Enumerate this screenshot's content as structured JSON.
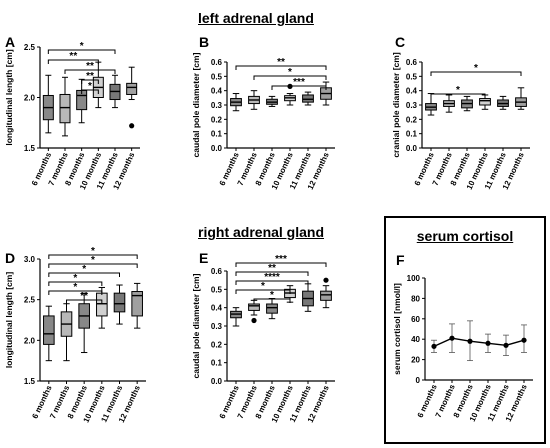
{
  "sections": {
    "left": "left adrenal gland",
    "right": "right adrenal gland",
    "cortisol": "serum cortisol"
  },
  "chart_data": [
    {
      "id": "A",
      "type": "boxplot",
      "ylabel": "longitudinal length [cm]",
      "ylim": [
        1.5,
        2.5
      ],
      "yticks": [
        "1.5",
        "2.0",
        "2.5"
      ],
      "categories": [
        "6 months",
        "7 months",
        "8 months",
        "10 months",
        "11 months",
        "12 months"
      ],
      "boxes": [
        {
          "min": 1.65,
          "q1": 1.78,
          "median": 1.9,
          "q3": 2.02,
          "max": 2.22,
          "fill": "#888888"
        },
        {
          "min": 1.62,
          "q1": 1.75,
          "median": 1.9,
          "q3": 2.03,
          "max": 2.2,
          "fill": "#b8b8b8"
        },
        {
          "min": 1.75,
          "q1": 1.88,
          "median": 2.02,
          "q3": 2.07,
          "max": 2.18,
          "fill": "#888888"
        },
        {
          "min": 1.9,
          "q1": 2.0,
          "median": 2.1,
          "q3": 2.2,
          "max": 2.35,
          "fill": "#d0d0d0"
        },
        {
          "min": 1.9,
          "q1": 1.98,
          "median": 2.06,
          "q3": 2.13,
          "max": 2.22,
          "fill": "#777777"
        },
        {
          "min": 1.98,
          "q1": 2.03,
          "median": 2.1,
          "q3": 2.14,
          "max": 2.3,
          "fill": "#a0a0a0"
        }
      ],
      "outliers": [
        {
          "cat": 5,
          "value": 1.72
        }
      ],
      "brackets": [
        {
          "from": 0,
          "to": 4,
          "label": "*"
        },
        {
          "from": 0,
          "to": 3,
          "label": "**"
        },
        {
          "from": 1,
          "to": 4,
          "label": "**"
        },
        {
          "from": 2,
          "to": 3,
          "label": "**"
        },
        {
          "from": 2,
          "to": 3,
          "label": "*"
        }
      ]
    },
    {
      "id": "B",
      "type": "boxplot",
      "ylabel": "caudal pole diameter [cm]",
      "ylim": [
        0.0,
        0.6
      ],
      "yticks": [
        "0.0",
        "0.1",
        "0.2",
        "0.3",
        "0.4",
        "0.5",
        "0.6"
      ],
      "categories": [
        "6 months",
        "7 months",
        "8 months",
        "10 months",
        "11 months",
        "12 months"
      ],
      "boxes": [
        {
          "min": 0.26,
          "q1": 0.295,
          "median": 0.32,
          "q3": 0.345,
          "max": 0.38,
          "fill": "#888888"
        },
        {
          "min": 0.27,
          "q1": 0.31,
          "median": 0.335,
          "q3": 0.36,
          "max": 0.4,
          "fill": "#b8b8b8"
        },
        {
          "min": 0.29,
          "q1": 0.305,
          "median": 0.32,
          "q3": 0.34,
          "max": 0.36,
          "fill": "#888888"
        },
        {
          "min": 0.3,
          "q1": 0.33,
          "median": 0.35,
          "q3": 0.365,
          "max": 0.38,
          "fill": "#d0d0d0"
        },
        {
          "min": 0.3,
          "q1": 0.32,
          "median": 0.34,
          "q3": 0.37,
          "max": 0.39,
          "fill": "#777777"
        },
        {
          "min": 0.3,
          "q1": 0.34,
          "median": 0.38,
          "q3": 0.42,
          "max": 0.46,
          "fill": "#a0a0a0"
        }
      ],
      "outliers": [
        {
          "cat": 3,
          "value": 0.43
        }
      ],
      "brackets": [
        {
          "from": 0,
          "to": 5,
          "label": "**"
        },
        {
          "from": 1,
          "to": 5,
          "label": "*"
        },
        {
          "from": 2,
          "to": 5,
          "label": "***"
        }
      ]
    },
    {
      "id": "C",
      "type": "boxplot",
      "ylabel": "cranial pole diameter [cm]",
      "ylim": [
        0.0,
        0.6
      ],
      "yticks": [
        "0.0",
        "0.1",
        "0.2",
        "0.3",
        "0.4",
        "0.5",
        "0.6"
      ],
      "categories": [
        "6 months",
        "7 months",
        "8 months",
        "10 months",
        "11 months",
        "12 months"
      ],
      "boxes": [
        {
          "min": 0.23,
          "q1": 0.265,
          "median": 0.285,
          "q3": 0.31,
          "max": 0.38,
          "fill": "#888888"
        },
        {
          "min": 0.25,
          "q1": 0.29,
          "median": 0.31,
          "q3": 0.33,
          "max": 0.37,
          "fill": "#b8b8b8"
        },
        {
          "min": 0.26,
          "q1": 0.28,
          "median": 0.31,
          "q3": 0.335,
          "max": 0.36,
          "fill": "#888888"
        },
        {
          "min": 0.27,
          "q1": 0.3,
          "median": 0.33,
          "q3": 0.345,
          "max": 0.37,
          "fill": "#d0d0d0"
        },
        {
          "min": 0.27,
          "q1": 0.29,
          "median": 0.31,
          "q3": 0.335,
          "max": 0.36,
          "fill": "#777777"
        },
        {
          "min": 0.27,
          "q1": 0.29,
          "median": 0.32,
          "q3": 0.35,
          "max": 0.42,
          "fill": "#a0a0a0"
        }
      ],
      "outliers": [],
      "brackets": [
        {
          "from": 0,
          "to": 5,
          "label": "*"
        },
        {
          "from": 0,
          "to": 3,
          "label": "*"
        }
      ]
    },
    {
      "id": "D",
      "type": "boxplot",
      "ylabel": "longitudinal length [cm]",
      "ylim": [
        1.5,
        3.0
      ],
      "yticks": [
        "1.5",
        "2.0",
        "2.5",
        "3.0"
      ],
      "categories": [
        "6 months",
        "7 months",
        "8 months",
        "10 months",
        "11 months",
        "12 months"
      ],
      "boxes": [
        {
          "min": 1.75,
          "q1": 1.95,
          "median": 2.08,
          "q3": 2.3,
          "max": 2.42,
          "fill": "#888888"
        },
        {
          "min": 1.75,
          "q1": 2.05,
          "median": 2.2,
          "q3": 2.35,
          "max": 2.45,
          "fill": "#b8b8b8"
        },
        {
          "min": 1.85,
          "q1": 2.15,
          "median": 2.3,
          "q3": 2.45,
          "max": 2.58,
          "fill": "#888888"
        },
        {
          "min": 2.15,
          "q1": 2.3,
          "median": 2.45,
          "q3": 2.58,
          "max": 2.65,
          "fill": "#d0d0d0"
        },
        {
          "min": 2.2,
          "q1": 2.35,
          "median": 2.45,
          "q3": 2.58,
          "max": 2.68,
          "fill": "#777777"
        },
        {
          "min": 2.15,
          "q1": 2.3,
          "median": 2.55,
          "q3": 2.6,
          "max": 2.7,
          "fill": "#a0a0a0"
        }
      ],
      "outliers": [],
      "brackets": [
        {
          "from": 0,
          "to": 5,
          "label": "*"
        },
        {
          "from": 0,
          "to": 5,
          "label": "*"
        },
        {
          "from": 0,
          "to": 4,
          "label": "*"
        },
        {
          "from": 0,
          "to": 3,
          "label": "*"
        },
        {
          "from": 0,
          "to": 3,
          "label": "*"
        },
        {
          "from": 1,
          "to": 3,
          "label": "**"
        }
      ]
    },
    {
      "id": "E",
      "type": "boxplot",
      "ylabel": "caudal pole diameter [cm]",
      "ylim": [
        0.0,
        0.6
      ],
      "yticks": [
        "0.0",
        "0.1",
        "0.2",
        "0.3",
        "0.4",
        "0.5",
        "0.6"
      ],
      "categories": [
        "6 months",
        "7 months",
        "8 months",
        "10 months",
        "11 months",
        "12 months"
      ],
      "boxes": [
        {
          "min": 0.3,
          "q1": 0.345,
          "median": 0.365,
          "q3": 0.38,
          "max": 0.4,
          "fill": "#888888"
        },
        {
          "min": 0.36,
          "q1": 0.385,
          "median": 0.41,
          "q3": 0.42,
          "max": 0.44,
          "fill": "#b8b8b8"
        },
        {
          "min": 0.34,
          "q1": 0.37,
          "median": 0.4,
          "q3": 0.42,
          "max": 0.45,
          "fill": "#888888"
        },
        {
          "min": 0.43,
          "q1": 0.455,
          "median": 0.48,
          "q3": 0.5,
          "max": 0.52,
          "fill": "#d0d0d0"
        },
        {
          "min": 0.38,
          "q1": 0.41,
          "median": 0.45,
          "q3": 0.49,
          "max": 0.53,
          "fill": "#777777"
        },
        {
          "min": 0.4,
          "q1": 0.44,
          "median": 0.47,
          "q3": 0.49,
          "max": 0.52,
          "fill": "#a0a0a0"
        }
      ],
      "outliers": [
        {
          "cat": 1,
          "value": 0.33
        },
        {
          "cat": 5,
          "value": 0.55
        }
      ],
      "brackets": [
        {
          "from": 0,
          "to": 5,
          "label": "***"
        },
        {
          "from": 0,
          "to": 4,
          "label": "**"
        },
        {
          "from": 0,
          "to": 4,
          "label": "****"
        },
        {
          "from": 0,
          "to": 3,
          "label": "*"
        },
        {
          "from": 1,
          "to": 3,
          "label": "*"
        }
      ]
    },
    {
      "id": "F",
      "type": "line",
      "ylabel": "serum cortisol [nmol/l]",
      "ylim": [
        0,
        100
      ],
      "yticks": [
        "0",
        "20",
        "40",
        "60",
        "80",
        "100"
      ],
      "categories": [
        "6 months",
        "7 months",
        "8 months",
        "10 months",
        "11 months",
        "12 months"
      ],
      "series": [
        {
          "values": [
            33,
            41,
            38,
            36,
            34,
            39
          ],
          "err_low": [
            27,
            27,
            19,
            27,
            24,
            27
          ],
          "err_high": [
            39,
            55,
            58,
            45,
            44,
            54
          ]
        }
      ]
    }
  ]
}
